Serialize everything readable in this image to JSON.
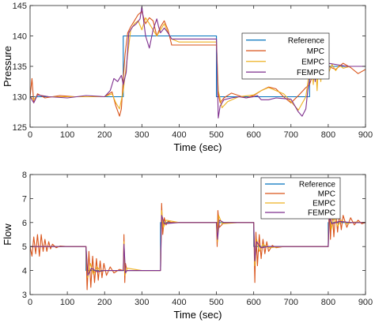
{
  "chart_data": [
    {
      "type": "line",
      "xlabel": "Time (sec)",
      "ylabel": "Pressure",
      "xlim": [
        0,
        900
      ],
      "ylim": [
        125,
        145
      ],
      "xticks": [
        0,
        100,
        200,
        300,
        400,
        500,
        600,
        700,
        800,
        900
      ],
      "yticks": [
        125,
        130,
        135,
        140,
        145
      ],
      "grid": false,
      "legend_position": "right-middle",
      "series": [
        {
          "name": "Reference",
          "color": "#0072BD",
          "x": [
            0,
            250,
            250,
            500,
            500,
            750,
            750,
            900
          ],
          "y": [
            130,
            130,
            140,
            140,
            130,
            130,
            135,
            135
          ]
        },
        {
          "name": "MPC",
          "color": "#D95319",
          "x": [
            0,
            5,
            10,
            20,
            40,
            80,
            120,
            160,
            200,
            220,
            230,
            240,
            245,
            250,
            255,
            262,
            270,
            280,
            290,
            300,
            310,
            320,
            330,
            340,
            350,
            360,
            370,
            380,
            400,
            450,
            500,
            505,
            510,
            520,
            540,
            560,
            580,
            600,
            620,
            640,
            660,
            680,
            700,
            720,
            740,
            750,
            755,
            760,
            770,
            780,
            790,
            800,
            820,
            840,
            860,
            880,
            900
          ],
          "y": [
            130,
            133,
            129,
            130.5,
            129.8,
            130.2,
            130,
            130,
            130,
            130.8,
            128.5,
            126.8,
            128,
            133,
            137,
            140.5,
            141.5,
            142.5,
            143.5,
            144,
            142,
            143,
            142.5,
            140,
            141.5,
            142.5,
            141,
            138.5,
            138.5,
            138.5,
            138.5,
            130.5,
            129,
            129.8,
            130.6,
            130.2,
            129.8,
            130.2,
            131,
            131.6,
            131.3,
            130,
            129,
            130.2,
            131.5,
            132,
            133,
            136,
            135,
            133.5,
            134.5,
            135,
            134.5,
            135.5,
            134.8,
            133.8,
            134.5
          ]
        },
        {
          "name": "EMPC",
          "color": "#EDB120",
          "x": [
            0,
            10,
            20,
            50,
            100,
            150,
            200,
            220,
            230,
            240,
            250,
            260,
            270,
            280,
            290,
            300,
            310,
            320,
            330,
            340,
            350,
            360,
            370,
            380,
            400,
            450,
            500,
            505,
            515,
            530,
            560,
            600,
            620,
            640,
            660,
            680,
            700,
            720,
            740,
            750,
            755,
            760,
            765,
            770,
            775,
            780,
            785,
            790,
            795,
            800,
            810,
            820,
            830,
            840,
            860,
            880,
            900
          ],
          "y": [
            130,
            129.5,
            130.3,
            130,
            130,
            130,
            130,
            130.5,
            129,
            128,
            131,
            136,
            141,
            142,
            142.5,
            141,
            143,
            142,
            141,
            140,
            141,
            142,
            140.5,
            139.5,
            139,
            139,
            139,
            131,
            128.2,
            129.2,
            130,
            130.3,
            131,
            131.5,
            131,
            130.5,
            129.2,
            127.8,
            130,
            134.5,
            136,
            132,
            137,
            131,
            136.5,
            132.5,
            136,
            133,
            135.5,
            133.8,
            135.3,
            134.3,
            135.2,
            134.7,
            135,
            135,
            135
          ]
        },
        {
          "name": "FEMPC",
          "color": "#7E2F8E",
          "x": [
            0,
            10,
            20,
            50,
            100,
            150,
            200,
            215,
            225,
            235,
            245,
            250,
            258,
            265,
            275,
            285,
            295,
            300,
            310,
            320,
            330,
            340,
            345,
            350,
            360,
            370,
            380,
            400,
            450,
            500,
            505,
            510,
            520,
            540,
            560,
            580,
            600,
            610,
            620,
            640,
            660,
            680,
            700,
            720,
            730,
            740,
            745,
            750,
            755,
            760,
            765,
            770,
            775,
            780,
            790,
            800,
            850,
            900
          ],
          "y": [
            130,
            129,
            130.3,
            130,
            129.8,
            130.2,
            130,
            131,
            133,
            132.5,
            133.5,
            132,
            134,
            140.5,
            141.5,
            142,
            142.8,
            144.8,
            140,
            138,
            141,
            142.8,
            141.5,
            140.5,
            141.3,
            140.5,
            139.5,
            139.5,
            139.5,
            139.5,
            126.5,
            128.5,
            129.5,
            129.8,
            130,
            129.8,
            130,
            130.2,
            129.5,
            129.5,
            129.8,
            129.7,
            129.6,
            127.5,
            126.8,
            128,
            131,
            133,
            134.5,
            136.5,
            132.5,
            137.5,
            133,
            136,
            134.5,
            135.5,
            135,
            135
          ]
        }
      ],
      "legend": [
        "Reference",
        "MPC",
        "EMPC",
        "FEMPC"
      ]
    },
    {
      "type": "line",
      "xlabel": "Time (sec)",
      "ylabel": "Flow",
      "xlim": [
        0,
        900
      ],
      "ylim": [
        3,
        8
      ],
      "xticks": [
        0,
        100,
        200,
        300,
        400,
        500,
        600,
        700,
        800,
        900
      ],
      "yticks": [
        3,
        4,
        5,
        6,
        7,
        8
      ],
      "grid": false,
      "legend_position": "top-right",
      "series": [
        {
          "name": "Reference",
          "color": "#0072BD",
          "x": [
            0,
            150,
            150,
            250,
            250,
            350,
            350,
            500,
            500,
            600,
            600,
            800,
            800,
            900
          ],
          "y": [
            5,
            5,
            4,
            4,
            4,
            4,
            6,
            6,
            6,
            6,
            5,
            5,
            6,
            6
          ]
        },
        {
          "name": "MPC",
          "color": "#D95319",
          "x": [
            0,
            5,
            10,
            15,
            20,
            25,
            30,
            35,
            40,
            45,
            50,
            55,
            60,
            70,
            80,
            100,
            150,
            153,
            158,
            163,
            168,
            173,
            178,
            183,
            188,
            193,
            198,
            205,
            215,
            225,
            240,
            250,
            252,
            254,
            256,
            260,
            280,
            300,
            330,
            350,
            353,
            356,
            360,
            365,
            370,
            380,
            400,
            450,
            480,
            500,
            502,
            504,
            508,
            520,
            560,
            600,
            603,
            606,
            610,
            615,
            620,
            625,
            630,
            635,
            640,
            650,
            660,
            680,
            700,
            740,
            780,
            800,
            803,
            806,
            810,
            815,
            820,
            825,
            830,
            835,
            840,
            850,
            860,
            870,
            880,
            890,
            900
          ],
          "y": [
            5,
            4.6,
            5.4,
            4.7,
            5.5,
            4.6,
            5.5,
            4.8,
            5.3,
            4.8,
            5.2,
            4.9,
            5.1,
            4.95,
            5.02,
            5,
            5,
            3.2,
            4.8,
            3.3,
            4.6,
            3.5,
            4.5,
            3.6,
            4.4,
            3.7,
            4.3,
            3.8,
            4.15,
            3.9,
            4.05,
            4,
            5.5,
            3.5,
            4.3,
            4,
            4,
            4,
            4,
            4,
            6.8,
            5.5,
            6.2,
            5.9,
            6.05,
            6,
            6,
            6,
            6,
            6,
            5,
            6.5,
            5.8,
            6,
            6,
            6,
            3.5,
            5.6,
            4.2,
            5.5,
            4.5,
            5.3,
            4.7,
            5.2,
            4.8,
            5.05,
            4.95,
            5,
            5,
            5,
            5,
            5,
            6.9,
            5.3,
            6.7,
            5.4,
            6.5,
            5.6,
            6.4,
            5.7,
            6.3,
            5.8,
            6.2,
            5.9,
            6.1,
            5.95,
            6
          ]
        },
        {
          "name": "EMPC",
          "color": "#EDB120",
          "x": [
            0,
            100,
            150,
            155,
            162,
            170,
            180,
            190,
            200,
            250,
            252,
            255,
            260,
            300,
            350,
            353,
            358,
            365,
            400,
            500,
            503,
            506,
            515,
            560,
            600,
            603,
            608,
            615,
            625,
            640,
            680,
            700,
            740,
            780,
            800,
            803,
            808,
            815,
            825,
            835,
            850,
            870,
            900
          ],
          "y": [
            5,
            5,
            5,
            3.7,
            4.3,
            3.85,
            4.15,
            3.95,
            4,
            4,
            5.2,
            3.8,
            4.1,
            4,
            4,
            6.5,
            5.8,
            6.1,
            6,
            6,
            5.2,
            6.3,
            5.95,
            6,
            6,
            4.2,
            5.3,
            4.8,
            5.1,
            4.95,
            5,
            5,
            5,
            5,
            5,
            6.4,
            5.7,
            6.2,
            5.85,
            6.1,
            5.95,
            6.02,
            6
          ]
        },
        {
          "name": "FEMPC",
          "color": "#7E2F8E",
          "x": [
            0,
            100,
            150,
            155,
            165,
            180,
            200,
            250,
            252,
            256,
            260,
            300,
            350,
            353,
            360,
            400,
            500,
            503,
            508,
            520,
            600,
            603,
            608,
            620,
            640,
            700,
            800,
            803,
            810,
            830,
            860,
            900
          ],
          "y": [
            5,
            5,
            5,
            3.8,
            4.1,
            3.95,
            4,
            4,
            5.1,
            3.9,
            4,
            4,
            4,
            6.3,
            5.95,
            6,
            6,
            5.3,
            6.1,
            6,
            6,
            4.4,
            5.2,
            4.95,
            5,
            5,
            5,
            6.2,
            5.95,
            6.05,
            6,
            6
          ]
        }
      ],
      "legend": [
        "Reference",
        "MPC",
        "EMPC",
        "FEMPC"
      ]
    }
  ]
}
